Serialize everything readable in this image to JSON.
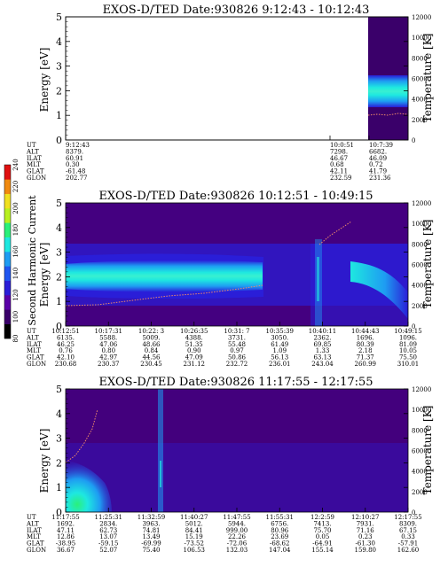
{
  "colors": {
    "background": "#ffffff",
    "spectrogram_scale": [
      "#000000",
      "#3a006a",
      "#5a00a8",
      "#2a1ed8",
      "#1f55f0",
      "#1e9cf2",
      "#1ee8e0",
      "#2af07a",
      "#b8f020",
      "#f0e020",
      "#f08a10",
      "#e01010"
    ],
    "sc_potential": "#f08a6a"
  },
  "colorbar": {
    "label": "Second Harmonic Current",
    "ticks": [
      "80",
      "100",
      "120",
      "140",
      "160",
      "180",
      "200",
      "220",
      "240"
    ]
  },
  "chart_data": [
    {
      "type": "heatmap",
      "title": "EXOS-D/TED   Date:930826  9:12:43 - 10:12:43",
      "ylabel": "Energy [eV]",
      "y2label": "Temperature [K]",
      "ylim": [
        0,
        5
      ],
      "y2lim": [
        0,
        12000
      ],
      "yticks": [
        "0",
        "1",
        "2",
        "3",
        "4",
        "5"
      ],
      "y2ticks": [
        "0",
        "2000",
        "4000",
        "6000",
        "8000",
        "10000",
        "12000"
      ],
      "data_coverage": [
        0.883,
        1.0
      ],
      "band_energy_range": [
        1.6,
        2.4
      ],
      "band_peak_energy": 2.0,
      "sc_potential_energy": 1.15,
      "table_rows": [
        "UT",
        "ALT",
        "ILAT",
        "MLT",
        "GLAT",
        "GLON"
      ],
      "table_columns": [
        {
          "UT": "9:12:43",
          "ALT": "8379.",
          "ILAT": "60.91",
          "MLT": "0.30",
          "GLAT": "-61.48",
          "GLON": "202.77"
        },
        {
          "UT": "10:0:51",
          "ALT": "7298.",
          "ILAT": "46.67",
          "MLT": "0.68",
          "GLAT": "42.11",
          "GLON": "232.59"
        },
        {
          "UT": "10:7:39",
          "ALT": "6682.",
          "ILAT": "46.09",
          "MLT": "0.72",
          "GLAT": "41.79",
          "GLON": "231.36"
        }
      ]
    },
    {
      "type": "heatmap",
      "title": "EXOS-D/TED   Date:930826  10:12:51 - 10:49:15",
      "ylabel": "Energy [eV]",
      "y2label": "Temperature [K]",
      "ylim": [
        0,
        5
      ],
      "y2lim": [
        0,
        12000
      ],
      "yticks": [
        "0",
        "1",
        "2",
        "3",
        "4",
        "5"
      ],
      "y2ticks": [
        "0",
        "2000",
        "4000",
        "6000",
        "8000",
        "10000",
        "12000"
      ],
      "band_energy_range": [
        1.5,
        2.4
      ],
      "band_peak_energy": 2.0,
      "table_rows": [
        "UT",
        "ALT",
        "ILAT",
        "MLT",
        "GLAT",
        "GLON"
      ],
      "table_columns": [
        {
          "UT": "10:12:51",
          "ALT": "6135.",
          "ILAT": "46.25",
          "MLT": "0.76",
          "GLAT": "42.10",
          "GLON": "230.68"
        },
        {
          "UT": "10:17:31",
          "ALT": "5588.",
          "ILAT": "47.06",
          "MLT": "0.80",
          "GLAT": "42.97",
          "GLON": "230.37"
        },
        {
          "UT": "10:22: 3",
          "ALT": "5009.",
          "ILAT": "48.66",
          "MLT": "0.84",
          "GLAT": "44.56",
          "GLON": "230.45"
        },
        {
          "UT": "10:26:35",
          "ALT": "4388.",
          "ILAT": "51.35",
          "MLT": "0.90",
          "GLAT": "47.09",
          "GLON": "231.12"
        },
        {
          "UT": "10:31: 7",
          "ALT": "3731.",
          "ILAT": "55.48",
          "MLT": "0.97",
          "GLAT": "50.86",
          "GLON": "232.72"
        },
        {
          "UT": "10:35:39",
          "ALT": "3050.",
          "ILAT": "61.49",
          "MLT": "1.09",
          "GLAT": "56.13",
          "GLON": "236.01"
        },
        {
          "UT": "10:40:11",
          "ALT": "2362.",
          "ILAT": "69.85",
          "MLT": "1.33",
          "GLAT": "63.13",
          "GLON": "243.04"
        },
        {
          "UT": "10:44:43",
          "ALT": "1696.",
          "ILAT": "80.39",
          "MLT": "2.18",
          "GLAT": "71.37",
          "GLON": "260.99"
        },
        {
          "UT": "10:49:15",
          "ALT": "1096.",
          "ILAT": "81.09",
          "MLT": "10.05",
          "GLAT": "75.50",
          "GLON": "310.01"
        }
      ]
    },
    {
      "type": "heatmap",
      "title": "EXOS-D/TED   Date:930826  11:17:55 - 12:17:55",
      "ylabel": "Energy [eV]",
      "y2label": "Temperature [K]",
      "ylim": [
        0,
        5
      ],
      "y2lim": [
        0,
        12000
      ],
      "yticks": [
        "0",
        "1",
        "2",
        "3",
        "4",
        "5"
      ],
      "y2ticks": [
        "0",
        "2000",
        "4000",
        "6000",
        "8000",
        "10000",
        "12000"
      ],
      "table_rows": [
        "UT",
        "ALT",
        "ILAT",
        "MLT",
        "GLAT",
        "GLON"
      ],
      "table_columns": [
        {
          "UT": "11:17:55",
          "ALT": "1692.",
          "ILAT": "47.11",
          "MLT": "12.86",
          "GLAT": "-38.95",
          "GLON": "36.67"
        },
        {
          "UT": "11:25:31",
          "ALT": "2834.",
          "ILAT": "62.73",
          "MLT": "13.07",
          "GLAT": "-59.15",
          "GLON": "52.07"
        },
        {
          "UT": "11:32:59",
          "ALT": "3963.",
          "ILAT": "74.81",
          "MLT": "13.49",
          "GLAT": "-69.99",
          "GLON": "75.40"
        },
        {
          "UT": "11:40:27",
          "ALT": "5012.",
          "ILAT": "84.41",
          "MLT": "15.19",
          "GLAT": "-73.52",
          "GLON": "106.53"
        },
        {
          "UT": "11:47:55",
          "ALT": "5944.",
          "ILAT": "999.00",
          "MLT": "22.26",
          "GLAT": "-72.06",
          "GLON": "132.03"
        },
        {
          "UT": "11:55:31",
          "ALT": "6756.",
          "ILAT": "80.96",
          "MLT": "23.69",
          "GLAT": "-68.62",
          "GLON": "147.04"
        },
        {
          "UT": "12:2:59",
          "ALT": "7413.",
          "ILAT": "75.70",
          "MLT": "0.05",
          "GLAT": "-64.91",
          "GLON": "155.14"
        },
        {
          "UT": "12:10:27",
          "ALT": "7931.",
          "ILAT": "71.16",
          "MLT": "0.23",
          "GLAT": "-61.30",
          "GLON": "159.80"
        },
        {
          "UT": "12:17:55",
          "ALT": "8309.",
          "ILAT": "67.15",
          "MLT": "0.33",
          "GLAT": "-57.91",
          "GLON": "162.60"
        }
      ]
    }
  ]
}
